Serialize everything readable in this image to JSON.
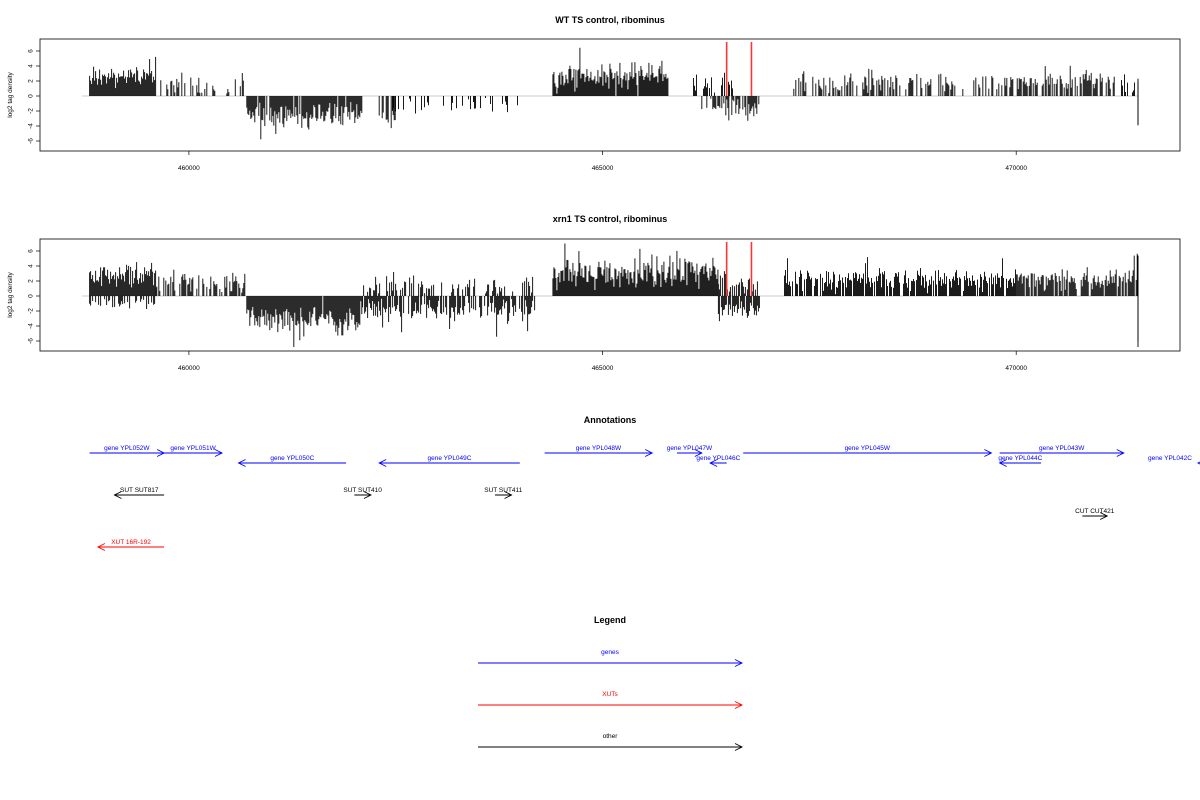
{
  "panels": [
    {
      "title": "WT TS control, ribominus",
      "ylabel": "log2 tag density",
      "yticks": [
        -6,
        -4,
        -2,
        0,
        2,
        4,
        6
      ],
      "xticks": [
        460000,
        465000,
        470000
      ],
      "xlim": [
        458200,
        471980
      ],
      "ylim": [
        -7.6,
        7.6
      ],
      "seed": 17,
      "red_markers": [
        466500,
        466800
      ],
      "segments": [
        [
          458800,
          459600,
          2.6,
          0.6,
          0.95
        ],
        [
          459600,
          460500,
          1.2,
          0.7,
          0.35
        ],
        [
          460500,
          460900,
          2.2,
          0.5,
          0.2
        ],
        [
          460700,
          462100,
          -2.6,
          0.8,
          0.9
        ],
        [
          462400,
          464000,
          -1.2,
          0.6,
          0.25
        ],
        [
          462300,
          462500,
          -3.2,
          0.6,
          0.4
        ],
        [
          464400,
          465800,
          2.6,
          0.9,
          0.98
        ],
        [
          466100,
          466600,
          1.8,
          0.6,
          0.4
        ],
        [
          466200,
          466900,
          -1.6,
          0.7,
          0.55
        ],
        [
          467300,
          470000,
          1.8,
          0.7,
          0.45
        ],
        [
          470000,
          471200,
          2.1,
          0.6,
          0.6
        ],
        [
          471200,
          472100,
          1.4,
          0.6,
          0.25
        ],
        [
          472300,
          472800,
          -1.2,
          0.5,
          0.1
        ],
        [
          473100,
          473800,
          -2.2,
          0.5,
          0.6
        ]
      ]
    },
    {
      "title": "xrn1 TS control, ribominus",
      "ylabel": "log2 tag density",
      "yticks": [
        -6,
        -4,
        -2,
        0,
        2,
        4,
        6
      ],
      "xticks": [
        460000,
        465000,
        470000
      ],
      "xlim": [
        458200,
        471980
      ],
      "ylim": [
        -7.6,
        7.6
      ],
      "seed": 101,
      "red_markers": [
        466500,
        466800
      ],
      "segments": [
        [
          458800,
          459600,
          2.7,
          0.7,
          0.98
        ],
        [
          458800,
          459600,
          -0.8,
          0.4,
          0.4
        ],
        [
          459600,
          460700,
          1.8,
          0.7,
          0.6
        ],
        [
          460700,
          462100,
          -3.0,
          0.9,
          0.98
        ],
        [
          462100,
          464200,
          -1.8,
          0.7,
          0.75
        ],
        [
          462100,
          464200,
          1.4,
          0.6,
          0.4
        ],
        [
          464400,
          466400,
          3.0,
          1.0,
          0.99
        ],
        [
          466400,
          466900,
          1.6,
          0.7,
          0.7
        ],
        [
          466400,
          466900,
          -2.0,
          0.7,
          0.8
        ],
        [
          467200,
          470000,
          2.2,
          0.7,
          0.85
        ],
        [
          470000,
          472000,
          2.2,
          0.7,
          0.85
        ],
        [
          472100,
          472900,
          1.0,
          0.5,
          0.15
        ],
        [
          472100,
          472900,
          -1.2,
          0.5,
          0.15
        ],
        [
          473100,
          473800,
          -2.8,
          0.7,
          0.9
        ]
      ]
    }
  ],
  "annotations": {
    "title": "Annotations",
    "items": [
      {
        "label": "gene YPL052W",
        "start": 458800,
        "end": 459700,
        "dir": "right",
        "type": "gene",
        "row": 0
      },
      {
        "label": "gene YPL051W",
        "start": 459700,
        "end": 460400,
        "dir": "right",
        "type": "gene",
        "row": 0
      },
      {
        "label": "gene YPL050C",
        "start": 460600,
        "end": 461900,
        "dir": "left",
        "type": "gene",
        "row": 1
      },
      {
        "label": "gene YPL049C",
        "start": 462300,
        "end": 464000,
        "dir": "left",
        "type": "gene",
        "row": 1
      },
      {
        "label": "gene YPL048W",
        "start": 464300,
        "end": 465600,
        "dir": "right",
        "type": "gene",
        "row": 0
      },
      {
        "label": "gene YPL047W",
        "start": 465900,
        "end": 466200,
        "dir": "right",
        "type": "gene",
        "row": 0
      },
      {
        "label": "gene YPL046C",
        "start": 466300,
        "end": 466500,
        "dir": "left",
        "type": "gene",
        "row": 1
      },
      {
        "label": "gene YPL045W",
        "start": 466700,
        "end": 469700,
        "dir": "right",
        "type": "gene",
        "row": 0
      },
      {
        "label": "gene YPL044C",
        "start": 469800,
        "end": 470300,
        "dir": "left",
        "type": "gene",
        "row": 1
      },
      {
        "label": "gene YPL043W",
        "start": 469800,
        "end": 471300,
        "dir": "right",
        "type": "gene",
        "row": 0
      },
      {
        "label": "gene YPL042C",
        "start": 472400,
        "end": 473600,
        "dir": "left",
        "type": "gene",
        "row": 1
      },
      {
        "label": "SUT SUT817",
        "start": 459100,
        "end": 459700,
        "dir": "left",
        "type": "other",
        "row": 2
      },
      {
        "label": "SUT SUT410",
        "start": 462000,
        "end": 462200,
        "dir": "right",
        "type": "other",
        "row": 2
      },
      {
        "label": "SUT SUT411",
        "start": 463700,
        "end": 463900,
        "dir": "right",
        "type": "other",
        "row": 2
      },
      {
        "label": "CUT CUT421",
        "start": 470800,
        "end": 471100,
        "dir": "right",
        "type": "other",
        "row": 3
      },
      {
        "label": "XUT 16R-192",
        "start": 458900,
        "end": 459700,
        "dir": "left",
        "type": "xut",
        "row": 4
      }
    ]
  },
  "legend": {
    "title": "Legend",
    "entries": [
      {
        "label": "genes",
        "color": "#0000ff"
      },
      {
        "label": "XUTs",
        "color": "#ff0000"
      },
      {
        "label": "other",
        "color": "#000000"
      }
    ]
  },
  "colors": {
    "gene": "#0000ff",
    "xut": "#ff0000",
    "other": "#000000",
    "axis": "#000000",
    "zero": "#999999",
    "marker": "#ff3333"
  }
}
